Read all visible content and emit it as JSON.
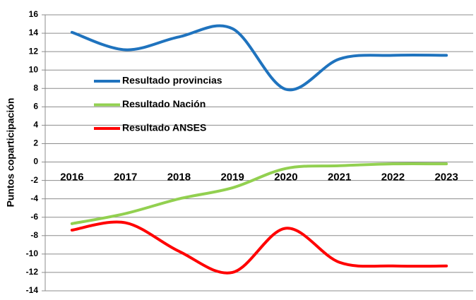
{
  "chart_data": {
    "type": "line",
    "y_label": "Puntos coparticipación",
    "categories": [
      "2016",
      "2017",
      "2018",
      "2019",
      "2020",
      "2021",
      "2022",
      "2023"
    ],
    "series": [
      {
        "name": "Resultado provincias",
        "color": "#1f73be",
        "values": [
          14.1,
          12.2,
          13.6,
          14.5,
          7.9,
          11.2,
          11.6,
          11.6
        ]
      },
      {
        "name": "Resultado Nación",
        "color": "#92d050",
        "values": [
          -6.7,
          -5.6,
          -4.0,
          -2.8,
          -0.7,
          -0.4,
          -0.2,
          -0.2
        ]
      },
      {
        "name": "Resultado ANSES",
        "color": "#ff0000",
        "values": [
          -7.4,
          -6.6,
          -9.7,
          -12.0,
          -7.2,
          -10.9,
          -11.3,
          -11.3
        ]
      }
    ],
    "ylim": [
      -14,
      16
    ],
    "yticks": [
      -14,
      -12,
      -10,
      -8,
      -6,
      -4,
      -2,
      0,
      2,
      4,
      6,
      8,
      10,
      12,
      14,
      16
    ],
    "grid": true,
    "legend": "left"
  }
}
